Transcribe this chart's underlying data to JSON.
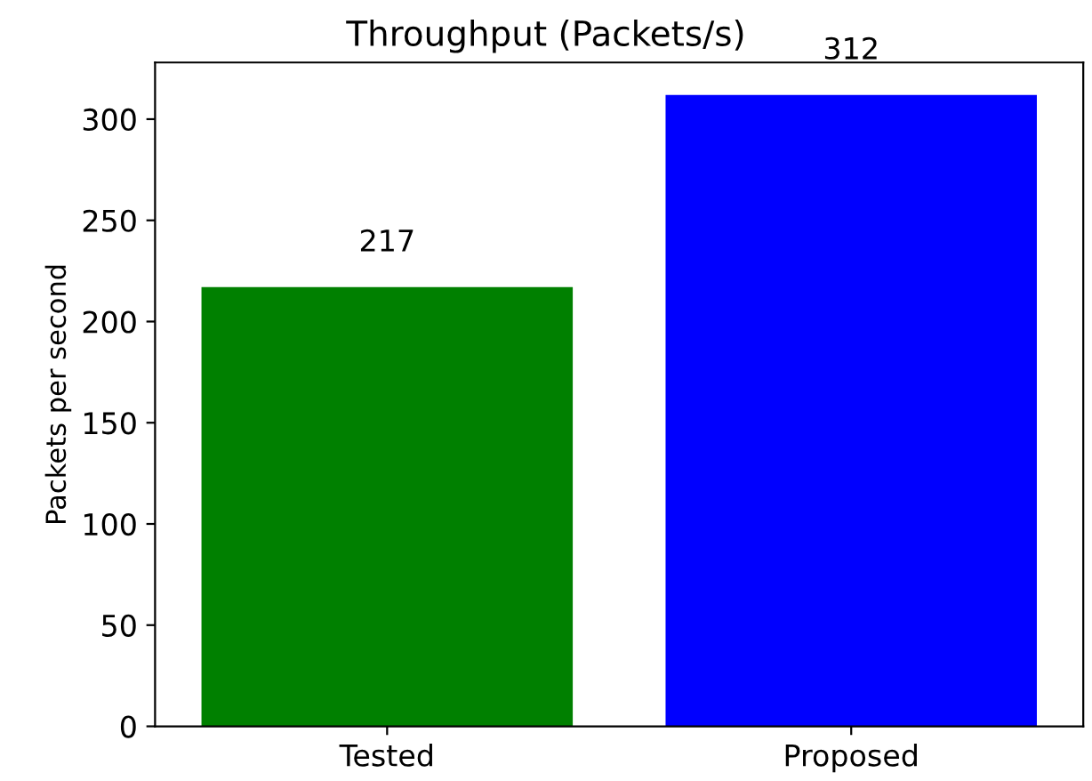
{
  "chart_data": {
    "type": "bar",
    "title": "Throughput (Packets/s)",
    "ylabel": "Packets per second",
    "categories": [
      "Tested",
      "Proposed"
    ],
    "values": [
      217,
      312
    ],
    "colors": [
      "#008000",
      "#0000ff"
    ],
    "ylim": [
      0,
      328
    ],
    "yticks": [
      0,
      50,
      100,
      150,
      200,
      250,
      300
    ],
    "data_labels": true,
    "grid": false,
    "legend": false
  }
}
